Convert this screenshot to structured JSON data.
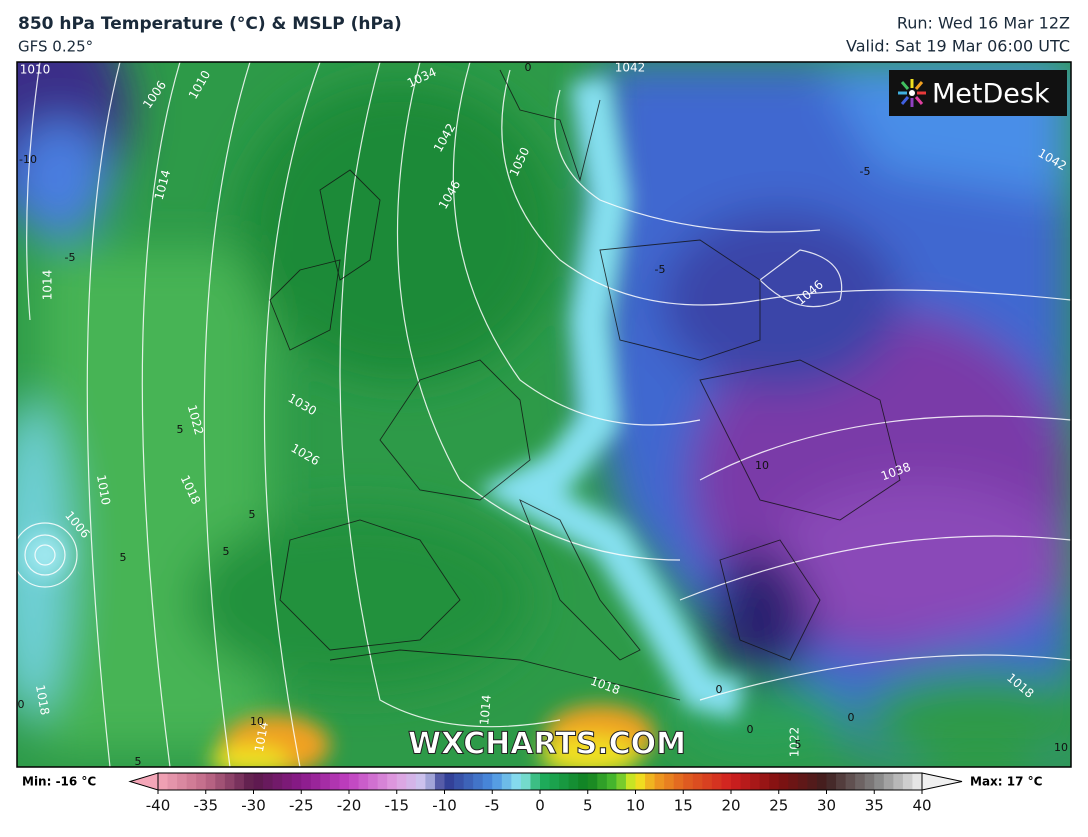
{
  "header": {
    "title": "850 hPa Temperature (°C) & MSLP (hPa)",
    "subtitle": "GFS 0.25°",
    "run": "Run: Wed 16 Mar 12Z",
    "valid": "Valid: Sat 19 Mar 06:00 UTC"
  },
  "logo": "MetDesk",
  "watermark": "WXCHARTS.COM",
  "map": {
    "isobar_labels": [
      "1010",
      "1006",
      "1010",
      "1034",
      "1042",
      "1046",
      "1050",
      "1014",
      "1014",
      "1022",
      "1030",
      "1026",
      "1018",
      "1010",
      "1006",
      "1018",
      "1014",
      "1018",
      "1046",
      "1042",
      "1038",
      "1042",
      "1022",
      "1018",
      "1014"
    ],
    "temperature_labels": [
      "-10",
      "-5",
      "-5",
      "-5",
      "5",
      "5",
      "5",
      "5",
      "10",
      "0",
      "0",
      "10",
      "10",
      "5",
      "0",
      "0",
      "0",
      "5"
    ]
  },
  "colorbar": {
    "min_label": "Min: -16 °C",
    "max_label": "Max: 17 °C",
    "ticks": [
      -40,
      -35,
      -30,
      -25,
      -20,
      -15,
      -10,
      -5,
      0,
      5,
      10,
      15,
      20,
      25,
      30,
      35,
      40
    ]
  }
}
